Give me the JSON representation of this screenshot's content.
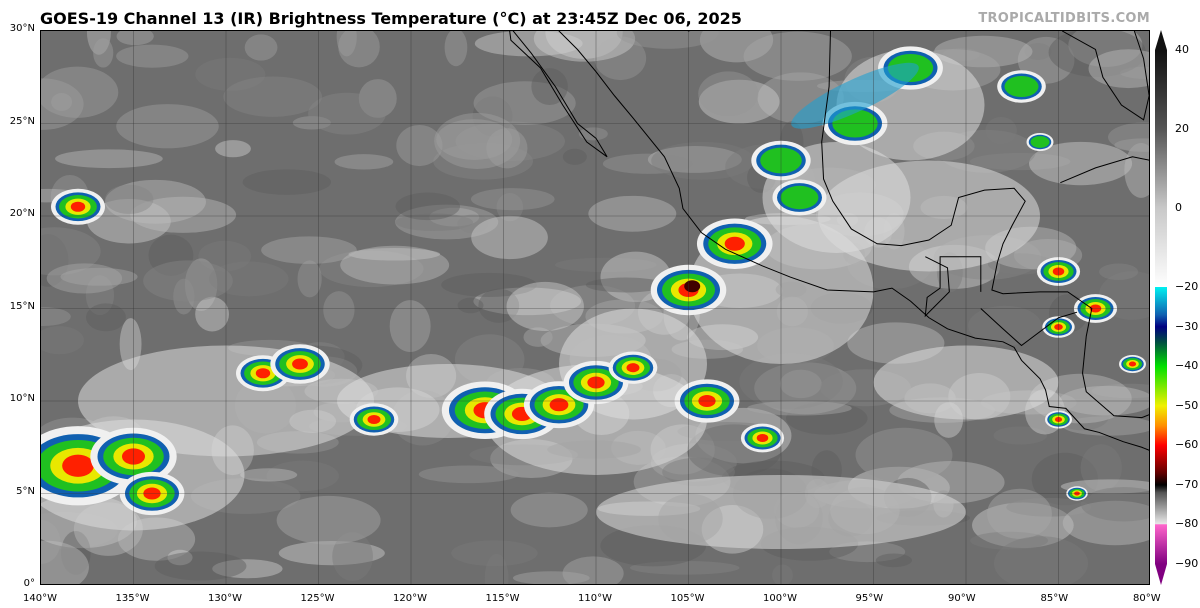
{
  "title": "GOES-19 Channel 13 (IR) Brightness Temperature (°C) at 23:45Z Dec 06, 2025",
  "credit": "TROPICALTIDBITS.COM",
  "map": {
    "extent": {
      "lon": [
        -140,
        -80
      ],
      "lat": [
        0,
        30
      ]
    },
    "lon_labels": [
      "140°W",
      "135°W",
      "130°W",
      "125°W",
      "120°W",
      "115°W",
      "110°W",
      "105°W",
      "100°W",
      "95°W",
      "90°W",
      "85°W",
      "80°W"
    ],
    "lat_labels": [
      "0°",
      "5°N",
      "10°N",
      "15°N",
      "20°N",
      "25°N",
      "30°N"
    ],
    "gridlines": true,
    "background_color": "#6e6e6e",
    "coastline_color": "#000000"
  },
  "colorbar": {
    "range": [
      -90,
      40
    ],
    "units": "°C",
    "tick_labels": [
      "40",
      "20",
      "0",
      "−20",
      "−30",
      "−40",
      "−50",
      "−60",
      "−70",
      "−80",
      "−90"
    ],
    "tick_values": [
      40,
      20,
      0,
      -20,
      -30,
      -40,
      -50,
      -60,
      -70,
      -80,
      -90
    ],
    "extend": "both",
    "colors": {
      "warm": "#111111",
      "cold_gray": "#e8e8e8",
      "cyan": "#00f0f0",
      "dark_blue": "#000080",
      "green": "#00e000",
      "yellow": "#f0f000",
      "orange": "#ff9000",
      "red": "#ff0000",
      "dark_red": "#600000",
      "pink": "#ff66cc",
      "purple": "#800080"
    }
  }
}
